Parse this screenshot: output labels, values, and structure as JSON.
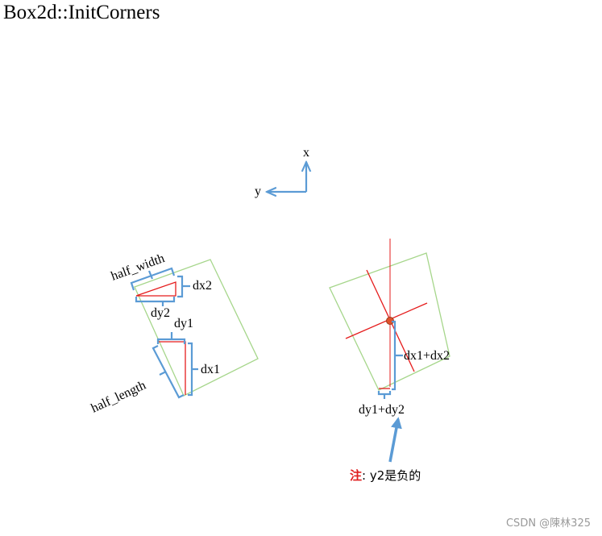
{
  "title": "Box2d::InitCorners",
  "axes": {
    "x_label": "x",
    "y_label": "y"
  },
  "left_box": {
    "half_width_label": "half_width",
    "half_length_label": "half_length",
    "dx1_label": "dx1",
    "dx2_label": "dx2",
    "dy1_label": "dy1",
    "dy2_label": "dy2"
  },
  "right_box": {
    "dx_sum_label": "dx1+dx2",
    "dy_sum_label": "dy1+dy2"
  },
  "note": {
    "marker": "注",
    "text": ": y2是负的"
  },
  "watermark": "CSDN @陳林325",
  "colors": {
    "box": "#a6d68b",
    "red": "#e51c1c",
    "blue": "#5b9bd5",
    "center_dot": "#e0512b"
  }
}
